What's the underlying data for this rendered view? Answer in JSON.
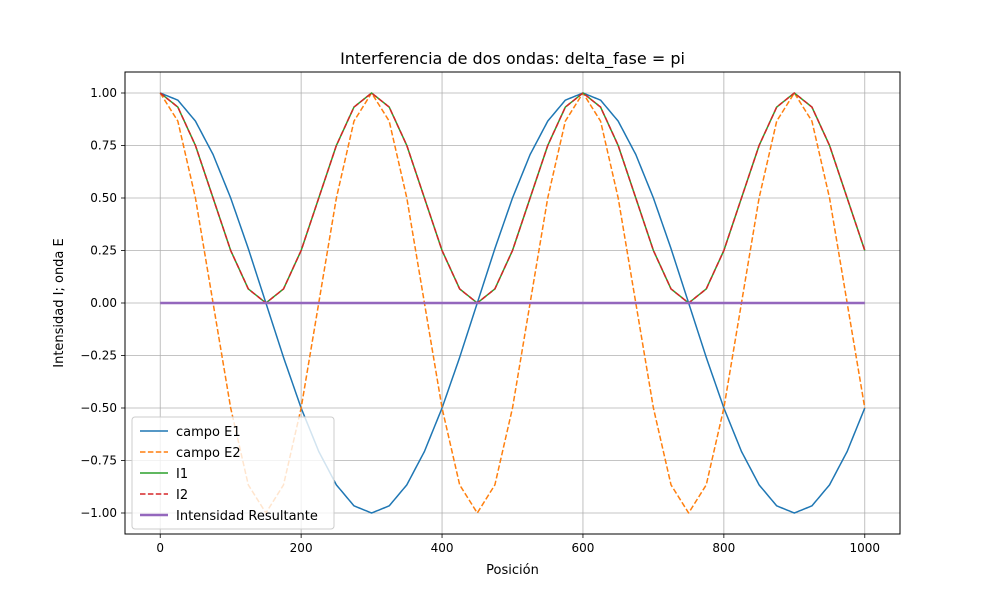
{
  "chart_data": {
    "type": "line",
    "title": "Interferencia de dos ondas: delta_fase = pi",
    "xlabel": "Posición",
    "ylabel": "Intensidad I; onda E",
    "xlim": [
      -50,
      1050
    ],
    "ylim": [
      -1.1,
      1.1
    ],
    "xticks": [
      0,
      200,
      400,
      600,
      800,
      1000
    ],
    "xtick_labels": [
      "0",
      "200",
      "400",
      "600",
      "800",
      "1000"
    ],
    "yticks": [
      -1.0,
      -0.75,
      -0.5,
      -0.25,
      0.0,
      0.25,
      0.5,
      0.75,
      1.0
    ],
    "ytick_labels": [
      "−1.00",
      "−0.75",
      "−0.50",
      "−0.25",
      "0.00",
      "0.25",
      "0.50",
      "0.75",
      "1.00"
    ],
    "grid": true,
    "legend_position": "lower-left",
    "x": [
      0,
      25,
      50,
      75,
      100,
      125,
      150,
      175,
      200,
      225,
      250,
      275,
      300,
      325,
      350,
      375,
      400,
      425,
      450,
      475,
      500,
      525,
      550,
      575,
      600,
      625,
      650,
      675,
      700,
      725,
      750,
      775,
      800,
      825,
      850,
      875,
      900,
      925,
      950,
      975,
      1000
    ],
    "series": [
      {
        "name": "campo E1",
        "color": "#1f77b4",
        "style": "solid",
        "width": 1.5,
        "values": [
          1.0,
          0.966,
          0.866,
          0.707,
          0.5,
          0.259,
          0.0,
          -0.259,
          -0.5,
          -0.707,
          -0.866,
          -0.966,
          -1.0,
          -0.966,
          -0.866,
          -0.707,
          -0.5,
          -0.259,
          0.0,
          0.259,
          0.5,
          0.707,
          0.866,
          0.966,
          1.0,
          0.966,
          0.866,
          0.707,
          0.5,
          0.259,
          0.0,
          -0.259,
          -0.5,
          -0.707,
          -0.866,
          -0.966,
          -1.0,
          -0.966,
          -0.866,
          -0.707,
          -0.5
        ]
      },
      {
        "name": "campo E2",
        "color": "#ff7f0e",
        "style": "dashed",
        "width": 1.5,
        "values": [
          1.0,
          0.866,
          0.5,
          0.0,
          -0.5,
          -0.866,
          -1.0,
          -0.866,
          -0.5,
          0.0,
          0.5,
          0.866,
          1.0,
          0.866,
          0.5,
          0.0,
          -0.5,
          -0.866,
          -1.0,
          -0.866,
          -0.5,
          0.0,
          0.5,
          0.866,
          1.0,
          0.866,
          0.5,
          0.0,
          -0.5,
          -0.866,
          -1.0,
          -0.866,
          -0.5,
          0.0,
          0.5,
          0.866,
          1.0,
          0.866,
          0.5,
          0.0,
          -0.5
        ]
      },
      {
        "name": "I1",
        "color": "#2ca02c",
        "style": "solid",
        "width": 1.5,
        "values": [
          1.0,
          0.933,
          0.75,
          0.5,
          0.25,
          0.067,
          0.0,
          0.067,
          0.25,
          0.5,
          0.75,
          0.933,
          1.0,
          0.933,
          0.75,
          0.5,
          0.25,
          0.067,
          0.0,
          0.067,
          0.25,
          0.5,
          0.75,
          0.933,
          1.0,
          0.933,
          0.75,
          0.5,
          0.25,
          0.067,
          0.0,
          0.067,
          0.25,
          0.5,
          0.75,
          0.933,
          1.0,
          0.933,
          0.75,
          0.5,
          0.25
        ]
      },
      {
        "name": "I2",
        "color": "#d62728",
        "style": "dashed",
        "width": 1.5,
        "values": [
          1.0,
          0.933,
          0.75,
          0.5,
          0.25,
          0.067,
          0.0,
          0.067,
          0.25,
          0.5,
          0.75,
          0.933,
          1.0,
          0.933,
          0.75,
          0.5,
          0.25,
          0.067,
          0.0,
          0.067,
          0.25,
          0.5,
          0.75,
          0.933,
          1.0,
          0.933,
          0.75,
          0.5,
          0.25,
          0.067,
          0.0,
          0.067,
          0.25,
          0.5,
          0.75,
          0.933,
          1.0,
          0.933,
          0.75,
          0.5,
          0.25
        ]
      },
      {
        "name": "Intensidad Resultante",
        "color": "#9467bd",
        "style": "solid",
        "width": 2.5,
        "values": [
          0.0,
          0.0,
          0.0,
          0.0,
          0.0,
          0.0,
          0.0,
          0.0,
          0.0,
          0.0,
          0.0,
          0.0,
          0.0,
          0.0,
          0.0,
          0.0,
          0.0,
          0.0,
          0.0,
          0.0,
          0.0,
          0.0,
          0.0,
          0.0,
          0.0,
          0.0,
          0.0,
          0.0,
          0.0,
          0.0,
          0.0,
          0.0,
          0.0,
          0.0,
          0.0,
          0.0,
          0.0,
          0.0,
          0.0,
          0.0,
          0.0
        ]
      }
    ]
  }
}
